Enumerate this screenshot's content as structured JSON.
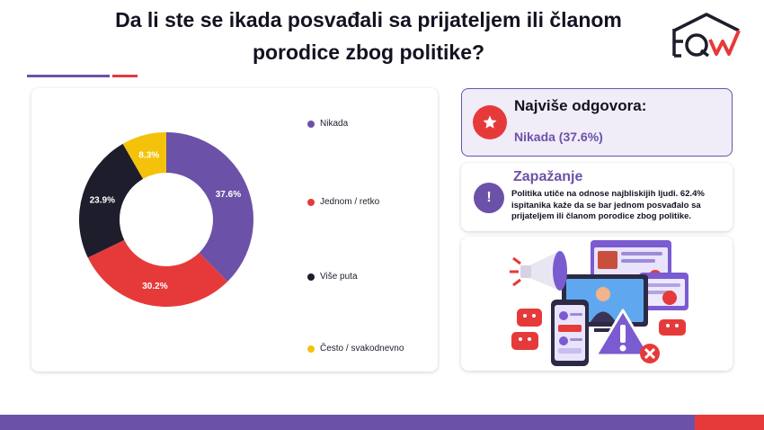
{
  "header": {
    "title_line1": "Da li ste se ikada posvađali sa prijateljem ili članom",
    "title_line2": "porodice zbog politike?"
  },
  "colors": {
    "purple": "#6b52a8",
    "red": "#e63a3a",
    "dark": "#1d1d2b",
    "yellow": "#f5c20b"
  },
  "chart_data": {
    "type": "pie",
    "title": "Da li ste se ikada posvađali sa prijateljem ili članom porodice zbog politike?",
    "donut": true,
    "legend_position": "right",
    "slices": [
      {
        "label": "Nikada",
        "value": 37.6,
        "display": "37.6%",
        "color": "#6b52a8"
      },
      {
        "label": "Jednom / retko",
        "value": 30.2,
        "display": "30.2%",
        "color": "#e63a3a"
      },
      {
        "label": "Više puta",
        "value": 23.9,
        "display": "23.9%",
        "color": "#1d1d2b"
      },
      {
        "label": "Često / svakodnevno",
        "value": 8.3,
        "display": "8.3%",
        "color": "#f5c20b"
      }
    ]
  },
  "top_answer": {
    "heading": "Najviše odgovora:",
    "value": "Nikada (37.6%)",
    "icon": "star-icon"
  },
  "insight": {
    "heading": "Zapažanje",
    "icon": "exclamation-icon",
    "badge": "!",
    "text": "Politika utiče na odnose najbliskijih ljudi. 62.4% ispitanika kaže da se bar jednom posvađalo sa prijateljem ili članom porodice zbog politike."
  },
  "illustration": {
    "icon": "social-media-conflict-illustration"
  }
}
